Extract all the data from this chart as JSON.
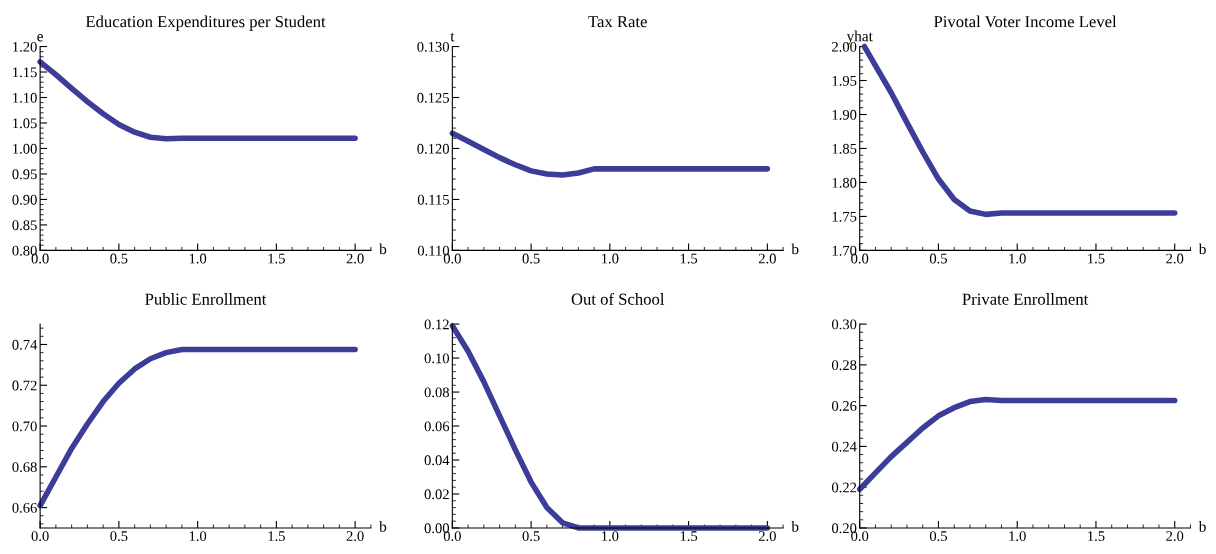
{
  "chart_data": [
    {
      "type": "line",
      "title": "Education Expenditures per Student",
      "xlabel": "b",
      "ylabel": "e",
      "xlim": [
        0,
        2.1
      ],
      "ylim": [
        0.8,
        1.2
      ],
      "xticks": [
        {
          "value": 0,
          "label": "0.0"
        },
        {
          "value": 0.5,
          "label": "0.5"
        },
        {
          "value": 1,
          "label": "1.0"
        },
        {
          "value": 1.5,
          "label": "1.5"
        },
        {
          "value": 2,
          "label": "2.0"
        }
      ],
      "yticks": [
        {
          "value": 0.8,
          "label": "0.80"
        },
        0.85,
        {
          "value": 0.9,
          "label": "0.90"
        },
        0.95,
        {
          "value": 1.0,
          "label": "1.00"
        },
        1.05,
        {
          "value": 1.1,
          "label": "1.10"
        },
        1.15,
        {
          "value": 1.2,
          "label": "1.20"
        }
      ],
      "grid": false,
      "marker": "none",
      "line_style": "solid",
      "x": [
        0,
        0.1,
        0.2,
        0.3,
        0.4,
        0.5,
        0.6,
        0.7,
        0.8,
        0.9,
        1.0,
        2.0
      ],
      "series": [
        {
          "color": "#3c3c99",
          "values": [
            1.17,
            1.145,
            1.118,
            1.092,
            1.068,
            1.047,
            1.032,
            1.022,
            1.019,
            1.02,
            1.02,
            1.02
          ]
        }
      ]
    },
    {
      "type": "line",
      "title": "Tax Rate",
      "xlabel": "b",
      "ylabel": "t",
      "xlim": [
        0,
        2.1
      ],
      "ylim": [
        0.11,
        0.13
      ],
      "xticks": [
        {
          "value": 0,
          "label": "0.0"
        },
        {
          "value": 0.5,
          "label": "0.5"
        },
        {
          "value": 1,
          "label": "1.0"
        },
        {
          "value": 1.5,
          "label": "1.5"
        },
        {
          "value": 2,
          "label": "2.0"
        }
      ],
      "yticks": [
        {
          "value": 0.11,
          "label": "0.110"
        },
        0.115,
        {
          "value": 0.12,
          "label": "0.120"
        },
        0.125,
        {
          "value": 0.13,
          "label": "0.130"
        }
      ],
      "grid": false,
      "marker": "none",
      "line_style": "solid",
      "x": [
        0,
        0.1,
        0.2,
        0.3,
        0.4,
        0.5,
        0.6,
        0.7,
        0.8,
        0.9,
        1.0,
        2.0
      ],
      "series": [
        {
          "color": "#3c3c99",
          "values": [
            0.1215,
            0.1207,
            0.1199,
            0.1191,
            0.1184,
            0.1178,
            0.1175,
            0.1174,
            0.1176,
            0.118,
            0.118,
            0.118
          ]
        }
      ]
    },
    {
      "type": "line",
      "title": "Pivotal Voter Income Level",
      "xlabel": "b",
      "ylabel": "yhat",
      "xlim": [
        0,
        2.1
      ],
      "ylim": [
        1.7,
        2.0
      ],
      "xticks": [
        {
          "value": 0,
          "label": "0.0"
        },
        {
          "value": 0.5,
          "label": "0.5"
        },
        {
          "value": 1,
          "label": "1.0"
        },
        {
          "value": 1.5,
          "label": "1.5"
        },
        {
          "value": 2,
          "label": "2.0"
        }
      ],
      "yticks": [
        {
          "value": 1.7,
          "label": "1.70"
        },
        1.75,
        {
          "value": 1.8,
          "label": "1.80"
        },
        1.85,
        {
          "value": 1.9,
          "label": "1.90"
        },
        1.95,
        {
          "value": 2.0,
          "label": "2.00"
        }
      ],
      "grid": false,
      "marker": "none",
      "line_style": "solid",
      "x": [
        0.03,
        0.1,
        0.2,
        0.3,
        0.4,
        0.5,
        0.6,
        0.7,
        0.8,
        0.9,
        1.0,
        2.0
      ],
      "series": [
        {
          "color": "#3c3c99",
          "values": [
            2.0,
            1.972,
            1.932,
            1.888,
            1.845,
            1.805,
            1.775,
            1.758,
            1.753,
            1.755,
            1.755,
            1.755
          ]
        }
      ]
    },
    {
      "type": "line",
      "title": "Public Enrollment",
      "xlabel": "b",
      "xlim": [
        0,
        2.1
      ],
      "ylim": [
        0.65,
        0.75
      ],
      "xticks": [
        {
          "value": 0,
          "label": "0.0"
        },
        {
          "value": 0.5,
          "label": "0.5"
        },
        {
          "value": 1,
          "label": "1.0"
        },
        {
          "value": 1.5,
          "label": "1.5"
        },
        {
          "value": 2,
          "label": "2.0"
        }
      ],
      "yticks": [
        0.66,
        0.68,
        {
          "value": 0.7,
          "label": "0.70"
        },
        0.72,
        0.74
      ],
      "grid": false,
      "marker": "none",
      "line_style": "solid",
      "x": [
        0,
        0.1,
        0.2,
        0.3,
        0.4,
        0.5,
        0.6,
        0.7,
        0.8,
        0.9,
        1.0,
        2.0
      ],
      "series": [
        {
          "color": "#3c3c99",
          "values": [
            0.661,
            0.675,
            0.689,
            0.701,
            0.712,
            0.721,
            0.728,
            0.733,
            0.736,
            0.7375,
            0.7375,
            0.7375
          ]
        }
      ]
    },
    {
      "type": "line",
      "title": "Out of School",
      "xlabel": "b",
      "xlim": [
        0,
        2.1
      ],
      "ylim": [
        0,
        0.12
      ],
      "xticks": [
        {
          "value": 0,
          "label": "0.0"
        },
        {
          "value": 0.5,
          "label": "0.5"
        },
        {
          "value": 1,
          "label": "1.0"
        },
        {
          "value": 1.5,
          "label": "1.5"
        },
        {
          "value": 2,
          "label": "2.0"
        }
      ],
      "yticks": [
        {
          "value": 0,
          "label": "0.00"
        },
        0.02,
        0.04,
        0.06,
        0.08,
        {
          "value": 0.1,
          "label": "0.10"
        },
        0.12
      ],
      "grid": false,
      "marker": "none",
      "line_style": "solid",
      "x": [
        0,
        0.1,
        0.2,
        0.3,
        0.4,
        0.5,
        0.6,
        0.7,
        0.8,
        0.9,
        1.0,
        2.0
      ],
      "series": [
        {
          "color": "#3c3c99",
          "values": [
            0.119,
            0.104,
            0.086,
            0.066,
            0.046,
            0.027,
            0.012,
            0.003,
            0.0,
            0.0,
            0.0,
            0.0
          ]
        }
      ]
    },
    {
      "type": "line",
      "title": "Private Enrollment",
      "xlabel": "b",
      "xlim": [
        0,
        2.1
      ],
      "ylim": [
        0.2,
        0.3
      ],
      "xticks": [
        {
          "value": 0,
          "label": "0.0"
        },
        {
          "value": 0.5,
          "label": "0.5"
        },
        {
          "value": 1,
          "label": "1.0"
        },
        {
          "value": 1.5,
          "label": "1.5"
        },
        {
          "value": 2,
          "label": "2.0"
        }
      ],
      "yticks": [
        {
          "value": 0.2,
          "label": "0.20"
        },
        0.22,
        0.24,
        0.26,
        0.28,
        {
          "value": 0.3,
          "label": "0.30"
        }
      ],
      "grid": false,
      "marker": "none",
      "line_style": "solid",
      "x": [
        0,
        0.1,
        0.2,
        0.3,
        0.4,
        0.5,
        0.6,
        0.7,
        0.8,
        0.9,
        1.0,
        2.0
      ],
      "series": [
        {
          "color": "#3c3c99",
          "values": [
            0.219,
            0.227,
            0.235,
            0.242,
            0.249,
            0.255,
            0.259,
            0.262,
            0.263,
            0.2625,
            0.2625,
            0.2625
          ]
        }
      ]
    }
  ]
}
